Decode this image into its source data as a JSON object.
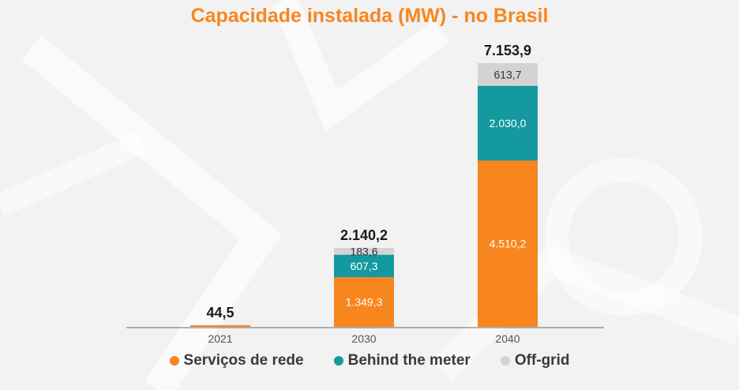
{
  "chart_data": {
    "type": "bar",
    "stacked": true,
    "title": "Capacidade instalada (MW) - no Brasil",
    "categories": [
      "2021",
      "2030",
      "2040"
    ],
    "series": [
      {
        "name": "Serviços de rede",
        "color": "#f7861f",
        "values": [
          44.5,
          1349.3,
          4510.2
        ],
        "labels": [
          "",
          "1.349,3",
          "4.510,2"
        ]
      },
      {
        "name": "Behind the meter",
        "color": "#13999f",
        "values": [
          0,
          607.3,
          2030.0
        ],
        "labels": [
          "",
          "607,3",
          "2.030,0"
        ]
      },
      {
        "name": "Off-grid",
        "color": "#d3d3d3",
        "values": [
          0,
          183.6,
          613.7
        ],
        "labels": [
          "",
          "183,6",
          "613,7"
        ]
      }
    ],
    "totals": [
      44.5,
      2140.2,
      7153.9
    ],
    "total_labels": [
      "44,5",
      "2.140,2",
      "7.153,9"
    ],
    "ylim": [
      0,
      7153.9
    ],
    "grid": false,
    "legend_position": "bottom"
  }
}
